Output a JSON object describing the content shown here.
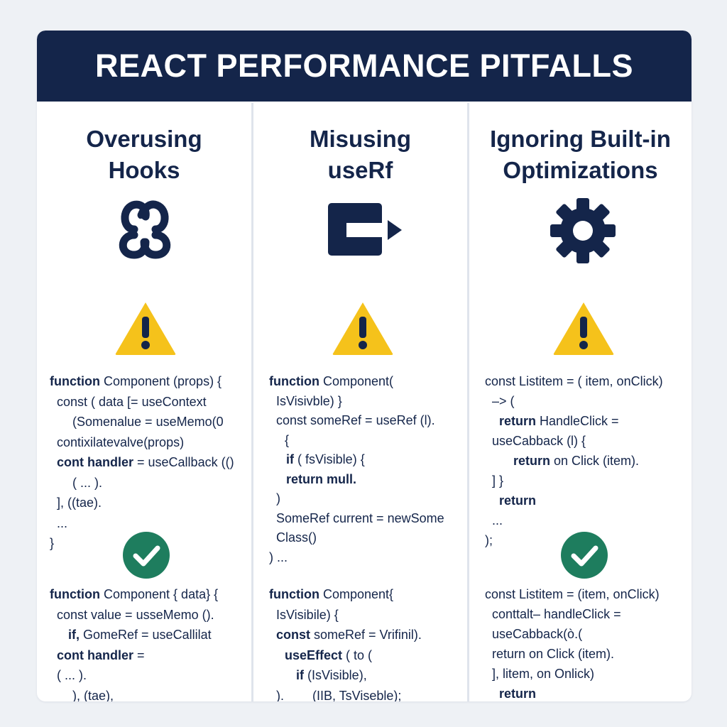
{
  "header": {
    "title": "REACT PERFORMANCE PITFALLS"
  },
  "colors": {
    "navy": "#14254a",
    "warning": "#f5c21b",
    "success": "#1e7d5e",
    "divider": "#dfe4ec"
  },
  "columns": [
    {
      "title_line1": "Overusing",
      "title_line2": "Hooks",
      "icon": "hook-link-icon",
      "bad_code": [
        {
          "kw": "function",
          "rest": " Component (props) {"
        },
        {
          "kw": "",
          "rest": "  const ( data [= useContext"
        },
        {
          "kw": "",
          "rest": "      (Somenalue = useMemo(0"
        },
        {
          "kw": "",
          "rest": "  contixilatevalve(props)"
        },
        {
          "kw": "cont handler",
          "rest": " = useCallback (()"
        },
        {
          "kw": "",
          "rest": "      ( ... )."
        },
        {
          "kw": "",
          "rest": "  ], ((tae)."
        },
        {
          "kw": "",
          "rest": "  ..."
        },
        {
          "kw": "",
          "rest": "}"
        }
      ],
      "good_code": [
        {
          "kw": "function",
          "rest": " Component { data} {"
        },
        {
          "kw": "",
          "rest": "  const value = usseMemo ()."
        },
        {
          "kw": "if,",
          "rest": " GomeRef = useCallilat"
        },
        {
          "kw": "cont handler",
          "rest": " ="
        },
        {
          "kw": "",
          "rest": "      ( ... )."
        },
        {
          "kw": "",
          "rest": "  ), (tae),"
        },
        {
          "kw": "",
          "rest": "  ..."
        }
      ]
    },
    {
      "title_line1": "Misusing",
      "title_line2": "useRf",
      "icon": "ref-arrow-icon",
      "bad_code": [
        {
          "kw": "function",
          "rest": " Component("
        },
        {
          "kw": "",
          "rest": "  IsVisivble) }"
        },
        {
          "kw": "",
          "rest": "  const someRef = useRef (l)."
        },
        {
          "kw": "",
          "rest": "    {"
        },
        {
          "kw": "if",
          "rest": " ( fsVisible) {"
        },
        {
          "kw": "return mull.",
          "rest": ""
        },
        {
          "kw": "",
          "rest": "  )"
        },
        {
          "kw": "",
          "rest": "  SomeRef current = newSome"
        },
        {
          "kw": "",
          "rest": "  Class()"
        },
        {
          "kw": "",
          "rest": ") ..."
        }
      ],
      "good_code": [
        {
          "kw": "function",
          "rest": " Component{"
        },
        {
          "kw": "",
          "rest": "  IsVisibile) {"
        },
        {
          "kw": "const",
          "rest": " someRef = Vrifinil)."
        },
        {
          "kw": "useEffect",
          "rest": " ( to ("
        },
        {
          "kw": "if",
          "rest": " (IsVisible),"
        },
        {
          "kw": "",
          "rest": "  ).        (IIB, TsViseble);"
        },
        {
          "kw": "",
          "rest": ") ..."
        }
      ]
    },
    {
      "title_line1": "Ignoring Built-in",
      "title_line2": "Optimizations",
      "icon": "gear-icon",
      "bad_code": [
        {
          "kw": "",
          "rest": "const Listitem = ( item, onClick)"
        },
        {
          "kw": "",
          "rest": "  –> ("
        },
        {
          "kw": "return",
          "rest": " HandleClick ="
        },
        {
          "kw": "",
          "rest": "      useCabback (l) {"
        },
        {
          "kw": "return",
          "rest": " on Click (item)."
        },
        {
          "kw": "",
          "rest": "  ] }"
        },
        {
          "kw": "return",
          "rest": ""
        },
        {
          "kw": "",
          "rest": "  ..."
        },
        {
          "kw": "",
          "rest": ");"
        }
      ],
      "good_code": [
        {
          "kw": "",
          "rest": "const Listitem = (item, onClick)"
        },
        {
          "kw": "",
          "rest": "  conttalt– handleClick ="
        },
        {
          "kw": "",
          "rest": "      useCabback(ò.("
        },
        {
          "kw": "",
          "rest": "      return on Click (item)."
        },
        {
          "kw": "",
          "rest": "  ], litem, on Onlick)"
        },
        {
          "kw": "return",
          "rest": ""
        },
        {
          "kw": "",
          "rest": ")."
        }
      ]
    }
  ]
}
